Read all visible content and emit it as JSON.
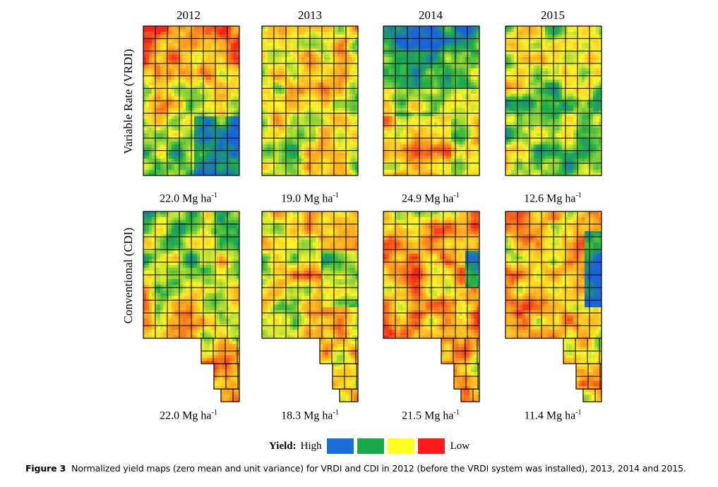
{
  "columns": [
    "2012",
    "2013",
    "2014",
    "2015"
  ],
  "rows": [
    {
      "label": "Variable Rate (VRDI)",
      "yields": [
        "22.0",
        "19.0",
        "24.9",
        "12.6"
      ]
    },
    {
      "label": "Conventional (CDI)",
      "yields": [
        "22.0",
        "18.3",
        "21.5",
        "11.4"
      ]
    }
  ],
  "yield_unit": "Mg ha",
  "yield_unit_exponent": "-1",
  "legend": {
    "title": "Yield:",
    "high": "High",
    "low": "Low",
    "colors": [
      "#1a6ed8",
      "#1aa84a",
      "#ffff22",
      "#ff1a1a"
    ]
  },
  "caption": {
    "label": "Figure 3",
    "text": "Normalized yield maps (zero mean and unit variance) for VRDI and CDI in 2012 (before the VRDI system was installed), 2013, 2014 and 2015."
  },
  "maps": {
    "VRDI": [
      {
        "year": "2012",
        "dominant": [
          "red",
          "orange",
          "yellow",
          "green",
          "blue"
        ]
      },
      {
        "year": "2013",
        "dominant": [
          "yellow",
          "orange",
          "green"
        ]
      },
      {
        "year": "2014",
        "dominant": [
          "blue",
          "green",
          "yellow",
          "orange"
        ]
      },
      {
        "year": "2015",
        "dominant": [
          "green",
          "yellow",
          "blue"
        ]
      }
    ],
    "CDI": [
      {
        "year": "2012",
        "dominant": [
          "green",
          "yellow",
          "orange",
          "red"
        ]
      },
      {
        "year": "2013",
        "dominant": [
          "yellow",
          "orange",
          "green",
          "blue"
        ]
      },
      {
        "year": "2014",
        "dominant": [
          "orange",
          "yellow",
          "red",
          "green",
          "blue"
        ]
      },
      {
        "year": "2015",
        "dominant": [
          "orange",
          "yellow",
          "green",
          "blue"
        ]
      }
    ]
  }
}
